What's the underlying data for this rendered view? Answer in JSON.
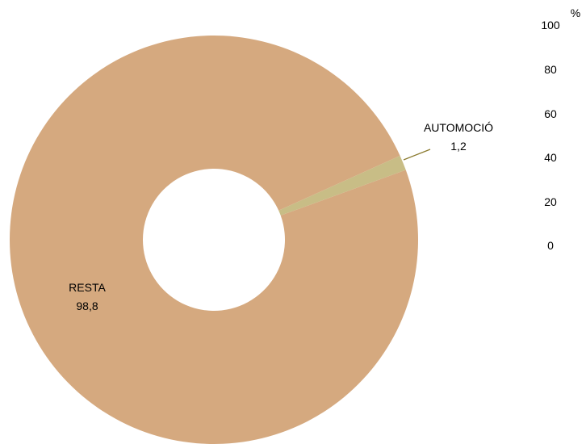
{
  "chart_data": {
    "type": "pie",
    "subtype": "donut",
    "slices": [
      {
        "label": "AUTOMOCIÓ",
        "value": 1.2,
        "value_text": "1,2",
        "color": "#c8bd86"
      },
      {
        "label": "RESTA",
        "value": 98.8,
        "value_text": "98,8",
        "color": "#d5a97f"
      }
    ],
    "axis": {
      "unit": "%",
      "ticks": [
        "100",
        "80",
        "60",
        "40",
        "20",
        "0"
      ]
    },
    "leader_line_color": "#8a7a2e"
  }
}
